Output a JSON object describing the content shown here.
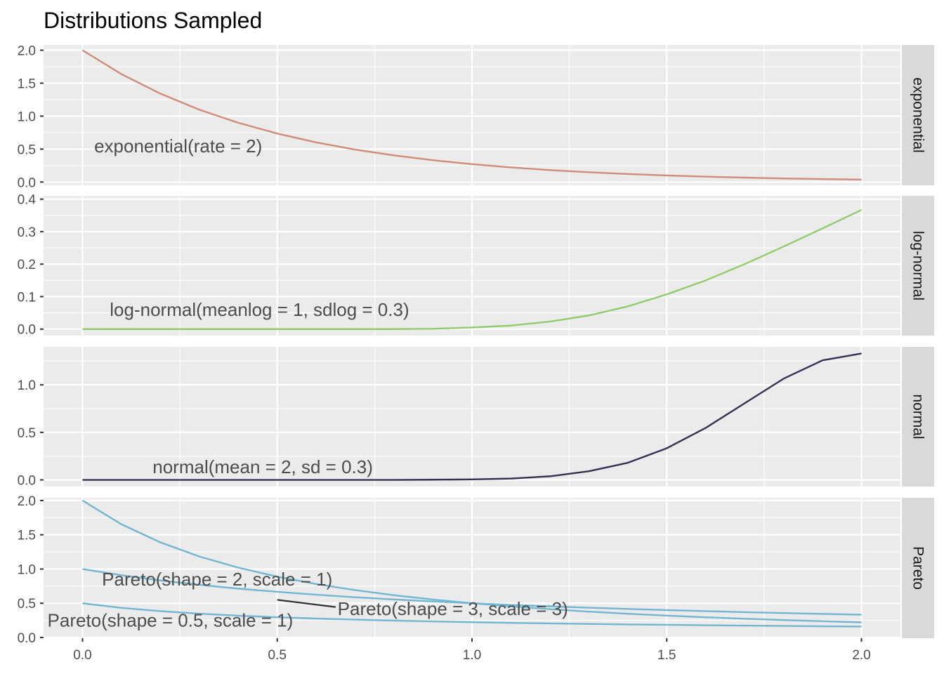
{
  "chart_data": {
    "type": "line",
    "title": "Distributions Sampled",
    "xlabel": "",
    "ylabel": "",
    "xlim": [
      -0.1,
      2.1
    ],
    "x_ticks": [
      0.0,
      0.5,
      1.0,
      1.5,
      2.0
    ],
    "x_tick_labels": [
      "0.0",
      "0.5",
      "1.0",
      "1.5",
      "2.0"
    ],
    "grid": true,
    "facets": [
      {
        "strip": "exponential",
        "ylim": [
          -0.05,
          2.08
        ],
        "y_ticks": [
          0.0,
          0.5,
          1.0,
          1.5,
          2.0
        ],
        "y_tick_labels": [
          "0.0",
          "0.5",
          "1.0",
          "1.5",
          "2.0"
        ],
        "color": "#d08c78",
        "annotations": [
          {
            "text": "exponential(rate = 2)",
            "x": 0.03,
            "y": 0.45
          }
        ],
        "series": [
          {
            "x": [
              0.0,
              0.1,
              0.2,
              0.3,
              0.4,
              0.5,
              0.6,
              0.7,
              0.8,
              0.9,
              1.0,
              1.1,
              1.2,
              1.3,
              1.4,
              1.5,
              1.6,
              1.7,
              1.8,
              1.9,
              2.0
            ],
            "values": [
              2.0,
              1.637,
              1.341,
              1.098,
              0.899,
              0.736,
              0.602,
              0.493,
              0.404,
              0.331,
              0.271,
              0.222,
              0.181,
              0.149,
              0.122,
              0.1,
              0.082,
              0.067,
              0.055,
              0.045,
              0.037
            ]
          }
        ]
      },
      {
        "strip": "log-normal",
        "ylim": [
          -0.02,
          0.41
        ],
        "y_ticks": [
          0.0,
          0.1,
          0.2,
          0.3,
          0.4
        ],
        "y_tick_labels": [
          "0.0",
          "0.1",
          "0.2",
          "0.3",
          "0.4"
        ],
        "color": "#8fcd6c",
        "annotations": [
          {
            "text": "log-normal(meanlog = 1, sdlog = 0.3)",
            "x": 0.07,
            "y": 0.04
          }
        ],
        "series": [
          {
            "x": [
              0.0,
              0.1,
              0.2,
              0.3,
              0.4,
              0.5,
              0.6,
              0.7,
              0.8,
              0.9,
              1.0,
              1.1,
              1.2,
              1.3,
              1.4,
              1.5,
              1.6,
              1.7,
              1.8,
              1.9,
              2.0
            ],
            "values": [
              0.0,
              0.0,
              0.0,
              0.0,
              0.0,
              0.0,
              0.0,
              0.0,
              0.0,
              0.001,
              0.005,
              0.011,
              0.023,
              0.042,
              0.07,
              0.107,
              0.15,
              0.2,
              0.254,
              0.31,
              0.367
            ]
          }
        ]
      },
      {
        "strip": "normal",
        "ylim": [
          -0.07,
          1.4
        ],
        "y_ticks": [
          0.0,
          0.5,
          1.0
        ],
        "y_tick_labels": [
          "0.0",
          "0.5",
          "1.0"
        ],
        "color": "#3b2e55",
        "annotations": [
          {
            "text": "normal(mean = 2, sd = 0.3)",
            "x": 0.18,
            "y": 0.07
          }
        ],
        "series": [
          {
            "x": [
              0.0,
              0.1,
              0.2,
              0.3,
              0.4,
              0.5,
              0.6,
              0.7,
              0.8,
              0.9,
              1.0,
              1.1,
              1.2,
              1.3,
              1.4,
              1.5,
              1.6,
              1.7,
              1.8,
              1.9,
              2.0
            ],
            "values": [
              0.0,
              0.0,
              0.0,
              0.0,
              0.0,
              0.0,
              0.0,
              0.0,
              0.0,
              0.002,
              0.005,
              0.014,
              0.038,
              0.091,
              0.18,
              0.333,
              0.547,
              0.806,
              1.065,
              1.258,
              1.33
            ]
          }
        ]
      },
      {
        "strip": "Pareto",
        "ylim": [
          -0.01,
          2.04
        ],
        "y_ticks": [
          0.0,
          0.5,
          1.0,
          1.5,
          2.0
        ],
        "y_tick_labels": [
          "0.0",
          "0.5",
          "1.0",
          "1.5",
          "2.0"
        ],
        "color": "#73b6d1",
        "annotations": [
          {
            "text": "Pareto(shape = 2, scale = 1)",
            "x": 0.05,
            "y": 0.76
          },
          {
            "text": "Pareto(shape = 3, scale = 3)",
            "x": 0.655,
            "y": 0.33
          },
          {
            "text": "Pareto(shape = 0.5, scale = 1)",
            "x": -0.09,
            "y": 0.16
          }
        ],
        "connector": {
          "x": [
            0.5,
            0.65
          ],
          "values": [
            0.55,
            0.445
          ],
          "color": "#333333"
        },
        "series": [
          {
            "x": [
              0.0,
              0.1,
              0.2,
              0.3,
              0.4,
              0.5,
              0.6,
              0.7,
              0.8,
              0.9,
              1.0,
              1.1,
              1.2,
              1.3,
              1.4,
              1.5,
              1.6,
              1.7,
              1.8,
              1.9,
              2.0
            ],
            "values": [
              2.0,
              1.653,
              1.389,
              1.183,
              1.02,
              0.889,
              0.781,
              0.692,
              0.617,
              0.554,
              0.5,
              0.454,
              0.413,
              0.378,
              0.347,
              0.32,
              0.296,
              0.274,
              0.255,
              0.238,
              0.222
            ]
          },
          {
            "x": [
              0.0,
              0.1,
              0.2,
              0.3,
              0.4,
              0.5,
              0.6,
              0.7,
              0.8,
              0.9,
              1.0,
              1.1,
              1.2,
              1.3,
              1.4,
              1.5,
              1.6,
              1.7,
              1.8,
              1.9,
              2.0
            ],
            "values": [
              1.0,
              0.909,
              0.833,
              0.769,
              0.714,
              0.667,
              0.625,
              0.588,
              0.556,
              0.526,
              0.5,
              0.476,
              0.455,
              0.435,
              0.417,
              0.4,
              0.385,
              0.37,
              0.357,
              0.345,
              0.333
            ]
          },
          {
            "x": [
              0.0,
              0.1,
              0.2,
              0.3,
              0.4,
              0.5,
              0.6,
              0.7,
              0.8,
              0.9,
              1.0,
              1.1,
              1.2,
              1.3,
              1.4,
              1.5,
              1.6,
              1.7,
              1.8,
              1.9,
              2.0
            ],
            "values": [
              0.5,
              0.433,
              0.385,
              0.348,
              0.319,
              0.296,
              0.277,
              0.261,
              0.247,
              0.235,
              0.224,
              0.214,
              0.206,
              0.198,
              0.191,
              0.185,
              0.179,
              0.174,
              0.169,
              0.164,
              0.16
            ]
          }
        ]
      }
    ]
  }
}
